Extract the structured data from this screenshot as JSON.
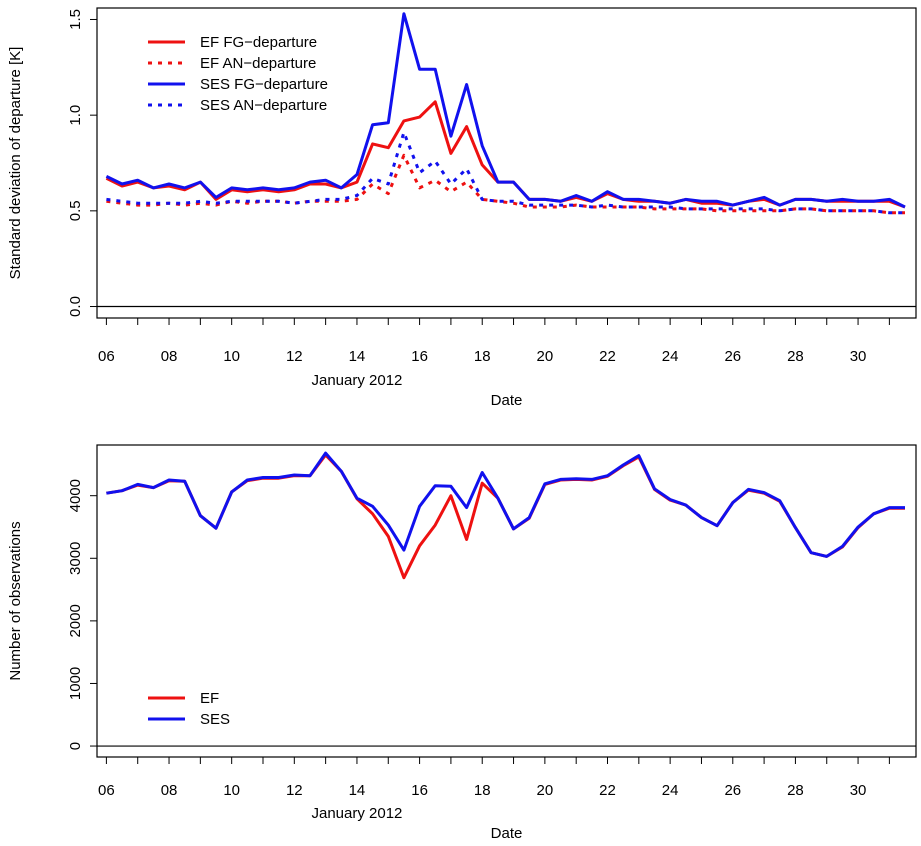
{
  "chart_data": [
    {
      "type": "line",
      "xlabel": "Date",
      "ylabel": "Standard deviation of departure [K]",
      "x_month_label": "January 2012",
      "x_ticks": [
        "06",
        "08",
        "10",
        "12",
        "14",
        "16",
        "18",
        "20",
        "22",
        "24",
        "26",
        "28",
        "30"
      ],
      "x_tick_values": [
        6,
        8,
        10,
        12,
        14,
        16,
        18,
        20,
        22,
        24,
        26,
        28,
        30
      ],
      "y_ticks": [
        "0.0",
        "0.5",
        "1.0",
        "1.5"
      ],
      "y_tick_values": [
        0.0,
        0.5,
        1.0,
        1.5
      ],
      "xlim": [
        5.7,
        31.85
      ],
      "ylim": [
        -0.06,
        1.56
      ],
      "reference_line_y": 0,
      "legend_position": "top-left",
      "x": [
        6,
        6.5,
        7,
        7.5,
        8,
        8.5,
        9,
        9.5,
        10,
        10.5,
        11,
        11.5,
        12,
        12.5,
        13,
        13.5,
        14,
        14.5,
        15,
        15.5,
        16,
        16.5,
        17,
        17.5,
        18,
        18.5,
        19,
        19.5,
        20,
        20.5,
        21,
        21.5,
        22,
        22.5,
        23,
        23.5,
        24,
        24.5,
        25,
        25.5,
        26,
        26.5,
        27,
        27.5,
        28,
        28.5,
        29,
        29.5,
        30,
        30.5,
        31,
        31.5
      ],
      "series": [
        {
          "name": "EF FG−departure",
          "color": "#ee1111",
          "dash": "solid",
          "values": [
            0.67,
            0.63,
            0.65,
            0.62,
            0.63,
            0.61,
            0.65,
            0.56,
            0.61,
            0.6,
            0.61,
            0.6,
            0.61,
            0.64,
            0.64,
            0.62,
            0.65,
            0.85,
            0.83,
            0.97,
            0.99,
            1.07,
            0.8,
            0.94,
            0.74,
            0.65,
            0.65,
            0.56,
            0.56,
            0.55,
            0.57,
            0.55,
            0.59,
            0.56,
            0.55,
            0.55,
            0.54,
            0.56,
            0.54,
            0.54,
            0.53,
            0.55,
            0.56,
            0.53,
            0.56,
            0.56,
            0.55,
            0.55,
            0.55,
            0.55,
            0.55,
            0.52
          ]
        },
        {
          "name": "EF AN−departure",
          "color": "#ee1111",
          "dash": "dotted",
          "values": [
            0.55,
            0.54,
            0.53,
            0.53,
            0.54,
            0.53,
            0.54,
            0.53,
            0.55,
            0.54,
            0.55,
            0.55,
            0.54,
            0.55,
            0.55,
            0.55,
            0.56,
            0.64,
            0.59,
            0.79,
            0.62,
            0.66,
            0.6,
            0.65,
            0.56,
            0.55,
            0.54,
            0.52,
            0.52,
            0.52,
            0.53,
            0.52,
            0.52,
            0.52,
            0.52,
            0.51,
            0.51,
            0.51,
            0.51,
            0.5,
            0.5,
            0.5,
            0.5,
            0.5,
            0.51,
            0.51,
            0.5,
            0.5,
            0.5,
            0.5,
            0.49,
            0.49
          ]
        },
        {
          "name": "SES FG−departure",
          "color": "#1111ee",
          "dash": "solid",
          "values": [
            0.68,
            0.64,
            0.66,
            0.62,
            0.64,
            0.62,
            0.65,
            0.57,
            0.62,
            0.61,
            0.62,
            0.61,
            0.62,
            0.65,
            0.66,
            0.62,
            0.69,
            0.95,
            0.96,
            1.53,
            1.24,
            1.24,
            0.89,
            1.16,
            0.84,
            0.65,
            0.65,
            0.56,
            0.56,
            0.55,
            0.58,
            0.55,
            0.6,
            0.56,
            0.56,
            0.55,
            0.54,
            0.56,
            0.55,
            0.55,
            0.53,
            0.55,
            0.57,
            0.53,
            0.56,
            0.56,
            0.55,
            0.56,
            0.55,
            0.55,
            0.56,
            0.52
          ]
        },
        {
          "name": "SES AN−departure",
          "color": "#1111ee",
          "dash": "dotted",
          "values": [
            0.56,
            0.55,
            0.54,
            0.54,
            0.54,
            0.54,
            0.55,
            0.54,
            0.55,
            0.55,
            0.55,
            0.55,
            0.54,
            0.55,
            0.56,
            0.56,
            0.58,
            0.67,
            0.64,
            0.91,
            0.7,
            0.76,
            0.64,
            0.72,
            0.56,
            0.55,
            0.55,
            0.53,
            0.53,
            0.53,
            0.53,
            0.52,
            0.53,
            0.52,
            0.52,
            0.52,
            0.52,
            0.51,
            0.51,
            0.51,
            0.51,
            0.51,
            0.51,
            0.5,
            0.51,
            0.51,
            0.5,
            0.5,
            0.5,
            0.5,
            0.49,
            0.49
          ]
        }
      ]
    },
    {
      "type": "line",
      "xlabel": "Date",
      "ylabel": "Number of observations",
      "x_month_label": "January 2012",
      "x_ticks": [
        "06",
        "08",
        "10",
        "12",
        "14",
        "16",
        "18",
        "20",
        "22",
        "24",
        "26",
        "28",
        "30"
      ],
      "x_tick_values": [
        6,
        8,
        10,
        12,
        14,
        16,
        18,
        20,
        22,
        24,
        26,
        28,
        30
      ],
      "y_ticks": [
        "0",
        "1000",
        "2000",
        "3000",
        "4000"
      ],
      "y_tick_values": [
        0,
        1000,
        2000,
        3000,
        4000
      ],
      "xlim": [
        5.7,
        31.85
      ],
      "ylim": [
        -175,
        4810
      ],
      "reference_line_y": 0,
      "legend_position": "bottom-left",
      "x": [
        6,
        6.5,
        7,
        7.5,
        8,
        8.5,
        9,
        9.5,
        10,
        10.5,
        11,
        11.5,
        12,
        12.5,
        13,
        13.5,
        14,
        14.5,
        15,
        15.5,
        16,
        16.5,
        17,
        17.5,
        18,
        18.5,
        19,
        19.5,
        20,
        20.5,
        21,
        21.5,
        22,
        22.5,
        23,
        23.5,
        24,
        24.5,
        25,
        25.5,
        26,
        26.5,
        27,
        27.5,
        28,
        28.5,
        29,
        29.5,
        30,
        30.5,
        31,
        31.5
      ],
      "series": [
        {
          "name": "EF",
          "color": "#ee1111",
          "dash": "solid",
          "values": [
            4040,
            4080,
            4170,
            4130,
            4240,
            4230,
            3680,
            3480,
            4060,
            4240,
            4280,
            4280,
            4320,
            4320,
            4650,
            4390,
            3950,
            3710,
            3350,
            2690,
            3200,
            3530,
            4000,
            3300,
            4200,
            3960,
            3470,
            3640,
            4180,
            4250,
            4260,
            4250,
            4310,
            4480,
            4620,
            4100,
            3930,
            3850,
            3650,
            3520,
            3890,
            4090,
            4040,
            3910,
            3490,
            3090,
            3030,
            3180,
            3490,
            3710,
            3800,
            3800
          ]
        },
        {
          "name": "SES",
          "color": "#1111ee",
          "dash": "solid",
          "values": [
            4040,
            4080,
            4180,
            4130,
            4250,
            4230,
            3680,
            3480,
            4060,
            4250,
            4290,
            4290,
            4330,
            4320,
            4680,
            4390,
            3960,
            3830,
            3530,
            3130,
            3830,
            4160,
            4150,
            3810,
            4370,
            3960,
            3470,
            3650,
            4190,
            4260,
            4270,
            4260,
            4320,
            4490,
            4640,
            4110,
            3940,
            3850,
            3650,
            3520,
            3890,
            4100,
            4050,
            3920,
            3490,
            3090,
            3030,
            3190,
            3500,
            3710,
            3810,
            3810
          ]
        }
      ]
    }
  ]
}
